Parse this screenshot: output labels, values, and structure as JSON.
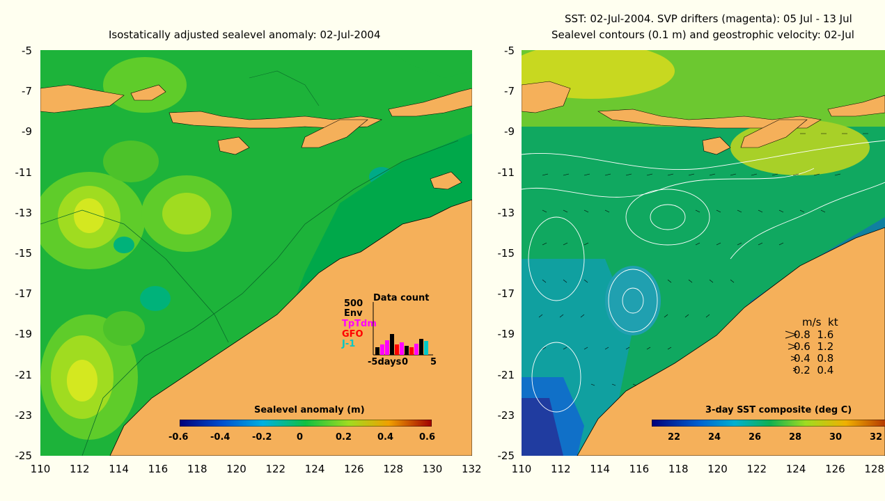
{
  "left": {
    "title": "Isostatically adjusted sealevel anomaly: 02-Jul-2004",
    "colorbar": {
      "title": "Sealevel anomaly (m)",
      "ticks": [
        "-0.6",
        "-0.4",
        "-0.2",
        "0",
        "0.2",
        "0.4",
        "0.6"
      ]
    },
    "histogram": {
      "title": "Data count",
      "scale": "500",
      "legend": [
        "Env",
        "TpTdm",
        "GFO",
        "J-1"
      ],
      "legend_colors": [
        "#000000",
        "#ff00ff",
        "#ff0000",
        "#00c8c8"
      ],
      "x_ticks": [
        "-5days",
        "0",
        "5"
      ]
    }
  },
  "right": {
    "title_line1": "SST: 02-Jul-2004. SVP drifters (magenta): 05 Jul - 13 Jul",
    "title_line2": "Sealevel contours (0.1 m) and geostrophic velocity: 02-Jul",
    "colorbar": {
      "title": "3-day SST composite (deg C)",
      "ticks": [
        "22",
        "24",
        "26",
        "28",
        "30",
        "32"
      ]
    },
    "velocity_legend": {
      "header": "m/s  kt",
      "rows": [
        "0.8  1.6",
        "0.6  1.2",
        "0.4  0.8",
        "0.2  0.4"
      ]
    }
  },
  "axes": {
    "y_ticks": [
      "-5",
      "-7",
      "-9",
      "-11",
      "-13",
      "-15",
      "-17",
      "-19",
      "-21",
      "-23",
      "-25"
    ],
    "x_ticks_left": [
      "110",
      "112",
      "114",
      "116",
      "118",
      "120",
      "122",
      "124",
      "126",
      "128",
      "130",
      "132"
    ],
    "x_ticks_right": [
      "110",
      "112",
      "114",
      "116",
      "118",
      "120",
      "122",
      "124",
      "126",
      "128"
    ]
  },
  "colors": {
    "land": "#f5b05a",
    "ocean_green": "#1db33a",
    "background": "#fffff0"
  }
}
